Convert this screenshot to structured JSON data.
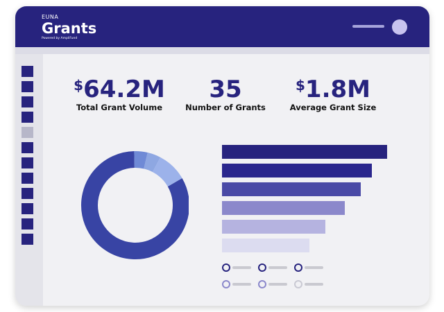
{
  "brand": {
    "top": "EUNA",
    "main": "Grants",
    "sub": "Powered by AmpliFund"
  },
  "kpis": [
    {
      "symbol": "$",
      "value": "64.2M",
      "label": "Total Grant Volume"
    },
    {
      "symbol": "",
      "value": "35",
      "label": "Number of Grants"
    },
    {
      "symbol": "$",
      "value": "1.8M",
      "label": "Average Grant Size"
    }
  ],
  "colors": {
    "brand_dark": "#27237e",
    "donut_main": "#3844a4",
    "bars": [
      "#27237e",
      "#2a268d",
      "#4a4aa6",
      "#8b88cb",
      "#b5b3e0",
      "#dcdcf0"
    ],
    "legend": [
      "#27237e",
      "#27237e",
      "#27237e",
      "#8b88cb",
      "#8b88cb",
      "#c9c9d3"
    ]
  },
  "chart_data": [
    {
      "type": "pie",
      "values": [
        83,
        4,
        4,
        9
      ]
    },
    {
      "type": "bar",
      "orientation": "horizontal",
      "values": [
        238,
        216,
        200,
        177,
        149,
        126
      ]
    }
  ]
}
